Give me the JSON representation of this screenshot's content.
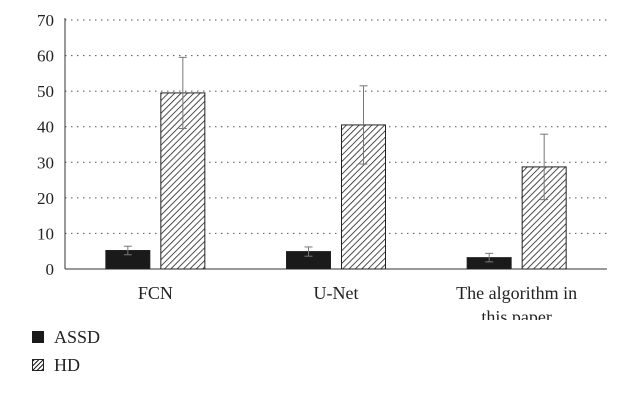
{
  "chart_data": {
    "type": "bar",
    "categories": [
      [
        "FCN"
      ],
      [
        "U-Net"
      ],
      [
        "The algorithm in",
        "this paper"
      ]
    ],
    "series": [
      {
        "name": "ASSD",
        "values": [
          5.2,
          4.9,
          3.2
        ],
        "errors": [
          1.2,
          1.3,
          1.2
        ],
        "color": "#1a1a1a",
        "fill": "solid"
      },
      {
        "name": "HD",
        "values": [
          49.5,
          40.5,
          28.7
        ],
        "errors": [
          10.0,
          11.0,
          9.2
        ],
        "color": "#222222",
        "fill": "diagonal-hatch"
      }
    ],
    "yticks": [
      0,
      10,
      20,
      30,
      40,
      50,
      60,
      70
    ],
    "ylim": [
      0,
      70
    ],
    "grid": "horizontal-dotted",
    "legend_position": "bottom-left"
  }
}
